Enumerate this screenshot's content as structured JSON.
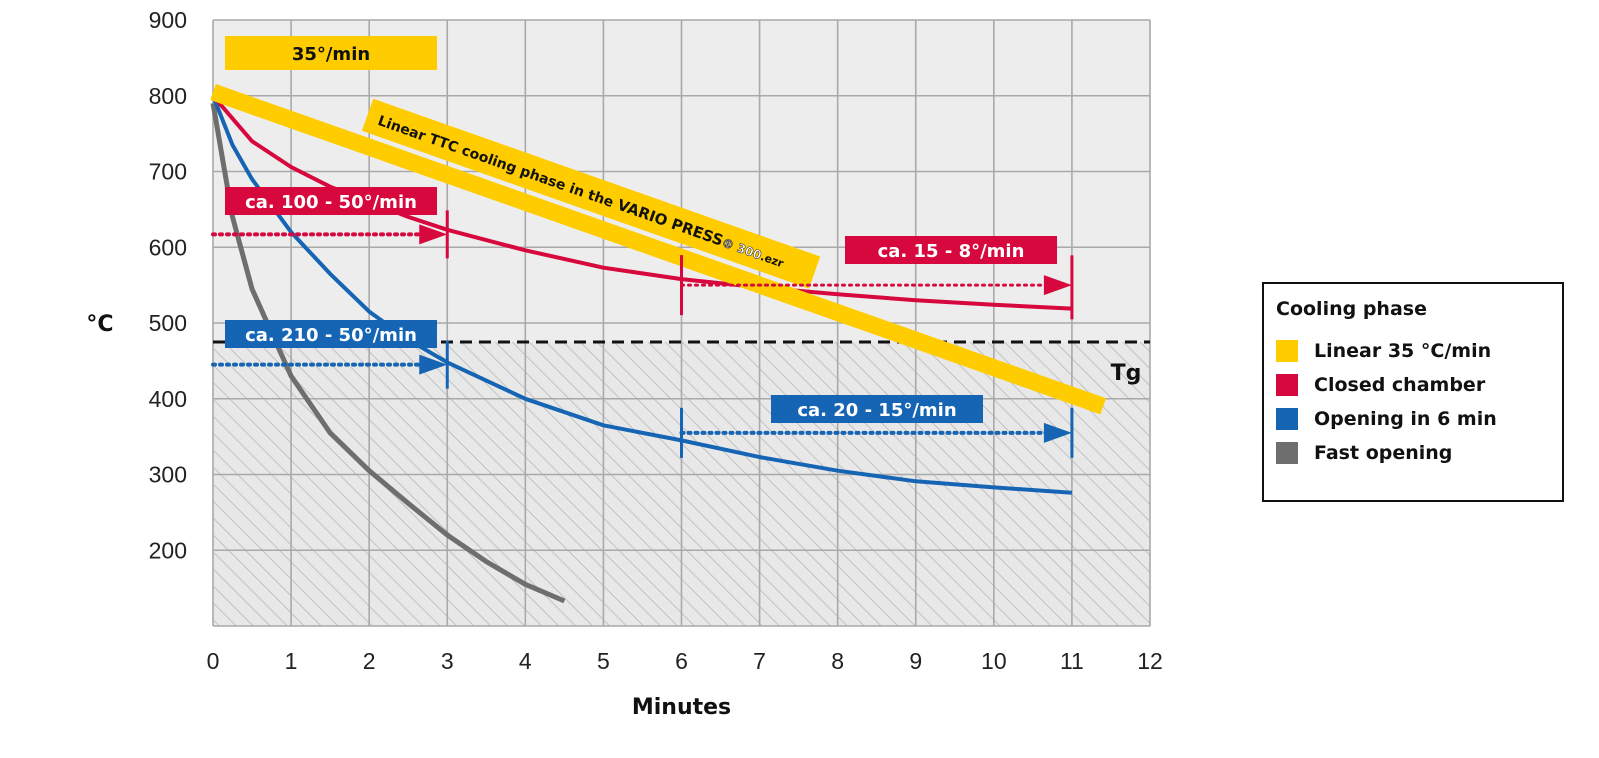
{
  "chart_data": {
    "type": "line",
    "xlabel": "Minutes",
    "ylabel": "°C",
    "xlim": [
      0,
      12
    ],
    "ylim": [
      100,
      900
    ],
    "x_ticks": [
      0,
      1,
      2,
      3,
      4,
      5,
      6,
      7,
      8,
      9,
      10,
      11,
      12
    ],
    "y_ticks": [
      200,
      300,
      400,
      500,
      600,
      700,
      800,
      900
    ],
    "grid": true,
    "legend_position": "right",
    "legend_title": "Cooling phase",
    "tg_value": 475,
    "tg_label": "Tg",
    "series": [
      {
        "name": "Linear 35 °C/min",
        "color": "#ffcc00",
        "x": [
          0,
          11.4
        ],
        "y": [
          805,
          390
        ]
      },
      {
        "name": "Closed chamber",
        "color": "#d7083d",
        "x": [
          0,
          0.5,
          1,
          1.5,
          2,
          2.5,
          3,
          4,
          5,
          6,
          7,
          8,
          9,
          10,
          11
        ],
        "y": [
          800,
          740,
          706,
          680,
          660,
          640,
          623,
          596,
          573,
          558,
          547,
          538,
          530,
          524,
          519
        ]
      },
      {
        "name": "Opening in 6 min",
        "color": "#1565b4",
        "x": [
          0,
          0.25,
          0.5,
          1,
          1.5,
          2,
          2.5,
          3,
          4,
          5,
          6,
          7,
          8,
          9,
          10,
          11
        ],
        "y": [
          800,
          735,
          690,
          620,
          565,
          515,
          478,
          448,
          400,
          365,
          345,
          323,
          305,
          291,
          283,
          276
        ]
      },
      {
        "name": "Fast opening",
        "color": "#6e6e6e",
        "x": [
          0,
          0.25,
          0.5,
          1,
          1.5,
          2,
          2.5,
          3,
          3.5,
          4,
          4.5
        ],
        "y": [
          790,
          640,
          545,
          430,
          355,
          305,
          262,
          220,
          185,
          155,
          133
        ]
      }
    ],
    "annotations": [
      {
        "label": "35°/min",
        "color": "#ffcc00"
      },
      {
        "label": "ca. 100 - 50°/min",
        "color": "#d7083d"
      },
      {
        "label": "ca. 15 - 8°/min",
        "color": "#d7083d"
      },
      {
        "label": "ca. 210 - 50°/min",
        "color": "#1565b4"
      },
      {
        "label": "ca. 20 - 15°/min",
        "color": "#1565b4"
      }
    ],
    "diagonal_label": {
      "text_a": "Linear TTC cooling phase in the ",
      "text_b": "VARIO PRESS",
      "text_c": "® 300",
      "text_d": ".ezr"
    }
  }
}
